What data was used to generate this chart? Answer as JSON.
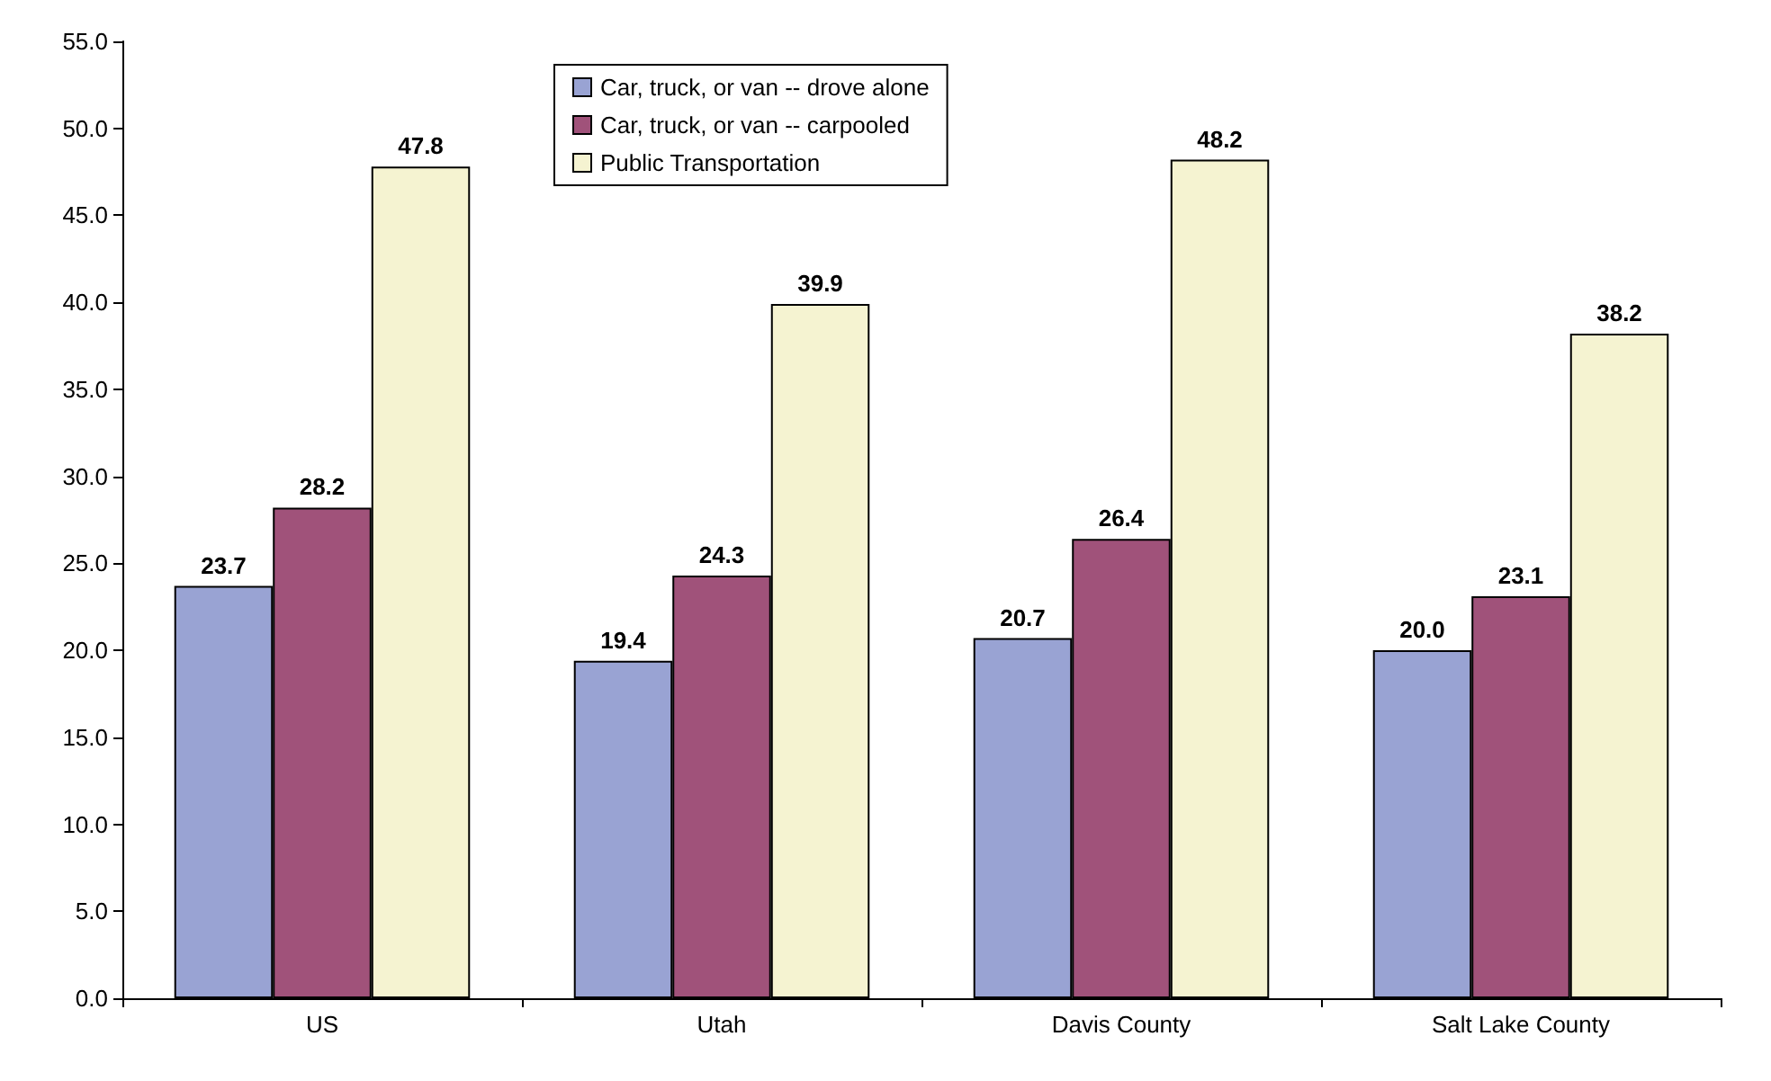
{
  "chart_data": {
    "type": "bar",
    "categories": [
      "US",
      "Utah",
      "Davis County",
      "Salt Lake County"
    ],
    "series": [
      {
        "name": "Car, truck, or van -- drove alone",
        "color": "#99a3d3",
        "values": [
          23.7,
          19.4,
          20.7,
          20.0
        ],
        "value_labels": [
          "23.7",
          "19.4",
          "20.7",
          "20.0"
        ]
      },
      {
        "name": "Car, truck, or van -- carpooled",
        "color": "#a0527a",
        "values": [
          28.2,
          24.3,
          26.4,
          23.1
        ],
        "value_labels": [
          "28.2",
          "24.3",
          "26.4",
          "23.1"
        ]
      },
      {
        "name": "Public Transportation",
        "color": "#f5f3d1",
        "values": [
          47.8,
          39.9,
          48.2,
          38.2
        ],
        "value_labels": [
          "47.8",
          "39.9",
          "48.2",
          "38.2"
        ]
      }
    ],
    "ylim": [
      0,
      55
    ],
    "yticks": [
      {
        "value": 0,
        "label": "0.0"
      },
      {
        "value": 5,
        "label": "5.0"
      },
      {
        "value": 10,
        "label": "10.0"
      },
      {
        "value": 15,
        "label": "15.0"
      },
      {
        "value": 20,
        "label": "20.0"
      },
      {
        "value": 25,
        "label": "25.0"
      },
      {
        "value": 30,
        "label": "30.0"
      },
      {
        "value": 35,
        "label": "35.0"
      },
      {
        "value": 40,
        "label": "40.0"
      },
      {
        "value": 45,
        "label": "45.0"
      },
      {
        "value": 50,
        "label": "50.0"
      },
      {
        "value": 55,
        "label": "55.0"
      }
    ],
    "grid": false,
    "legend": "top"
  }
}
